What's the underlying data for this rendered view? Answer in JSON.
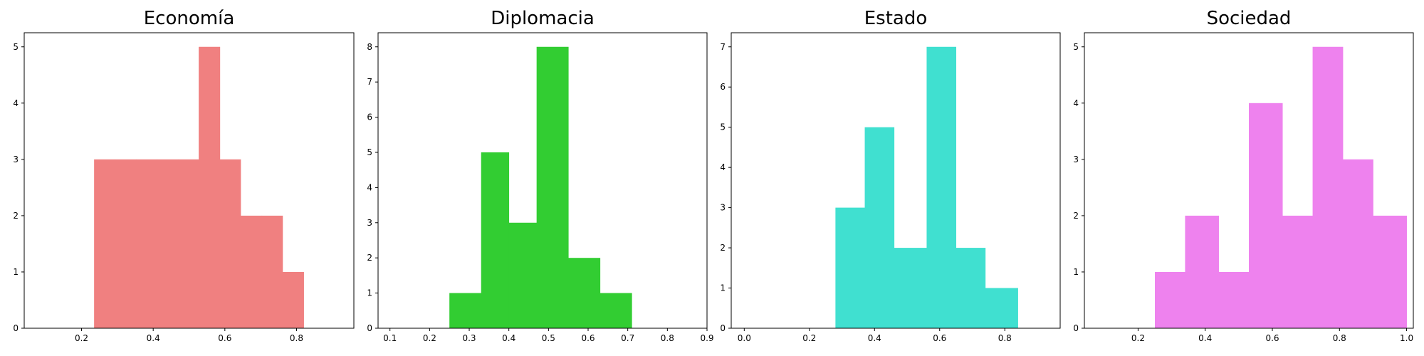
{
  "chart_data": [
    {
      "type": "bar",
      "title": "Economía",
      "xlabel": "",
      "ylabel": "",
      "color": "#f08080",
      "xlim": [
        0.04,
        0.96
      ],
      "ylim": [
        0,
        5.25
      ],
      "xticks": [
        0.2,
        0.4,
        0.6,
        0.8
      ],
      "yticks": [
        0,
        1,
        2,
        3,
        4,
        5
      ],
      "bin_edges": [
        0.235,
        0.293,
        0.352,
        0.41,
        0.469,
        0.527,
        0.586,
        0.644,
        0.703,
        0.761,
        0.82
      ],
      "values": [
        3,
        3,
        3,
        3,
        3,
        5,
        3,
        2,
        2,
        1
      ]
    },
    {
      "type": "bar",
      "title": "Diplomacia",
      "xlabel": "",
      "ylabel": "",
      "color": "#32cd32",
      "xlim": [
        0.07,
        0.9
      ],
      "ylim": [
        0,
        8.4
      ],
      "xticks": [
        0.1,
        0.2,
        0.3,
        0.4,
        0.5,
        0.6,
        0.7,
        0.8,
        0.9
      ],
      "yticks": [
        0,
        1,
        2,
        3,
        4,
        5,
        6,
        7,
        8
      ],
      "bin_edges": [
        0.25,
        0.33,
        0.4,
        0.47,
        0.55,
        0.63,
        0.71
      ],
      "values": [
        1,
        5,
        3,
        8,
        2,
        1
      ]
    },
    {
      "type": "bar",
      "title": "Estado",
      "xlabel": "",
      "ylabel": "",
      "color": "#40e0d0",
      "xlim": [
        -0.04,
        0.97
      ],
      "ylim": [
        0,
        7.35
      ],
      "xticks": [
        0.0,
        0.2,
        0.4,
        0.6,
        0.8
      ],
      "yticks": [
        0,
        1,
        2,
        3,
        4,
        5,
        6,
        7
      ],
      "bin_edges": [
        0.28,
        0.37,
        0.46,
        0.56,
        0.65,
        0.74,
        0.84
      ],
      "values": [
        3,
        5,
        2,
        7,
        2,
        1
      ]
    },
    {
      "type": "bar",
      "title": "Sociedad",
      "xlabel": "",
      "ylabel": "",
      "color": "#ee82ee",
      "xlim": [
        0.04,
        1.02
      ],
      "ylim": [
        0,
        5.25
      ],
      "xticks": [
        0.2,
        0.4,
        0.6,
        0.8,
        1.0
      ],
      "yticks": [
        0,
        1,
        2,
        3,
        4,
        5
      ],
      "bin_edges": [
        0.25,
        0.34,
        0.44,
        0.53,
        0.63,
        0.72,
        0.81,
        0.9,
        1.0
      ],
      "values": [
        1,
        2,
        1,
        4,
        2,
        5,
        3,
        2
      ]
    }
  ]
}
